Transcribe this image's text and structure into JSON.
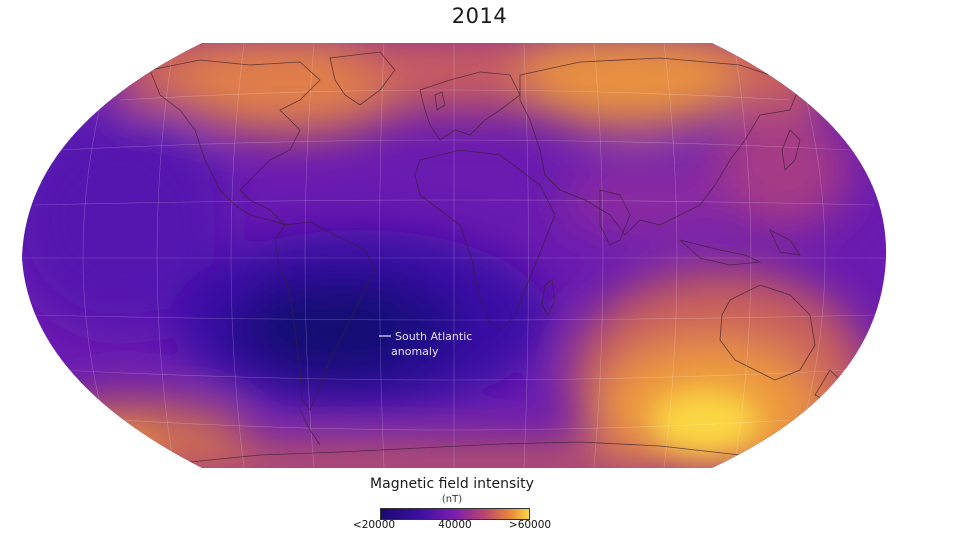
{
  "title": "2014",
  "annotation": {
    "label_line1": "South Atlantic",
    "label_line2": "anomaly"
  },
  "legend": {
    "title": "Magnetic field intensity",
    "unit": "(nT)",
    "ticks": [
      "<20000",
      "40000",
      ">60000"
    ],
    "colors": [
      "#1c0a6e",
      "#3b0fa0",
      "#7a1fb0",
      "#b8466d",
      "#e98a3a",
      "#fbd743"
    ]
  }
}
